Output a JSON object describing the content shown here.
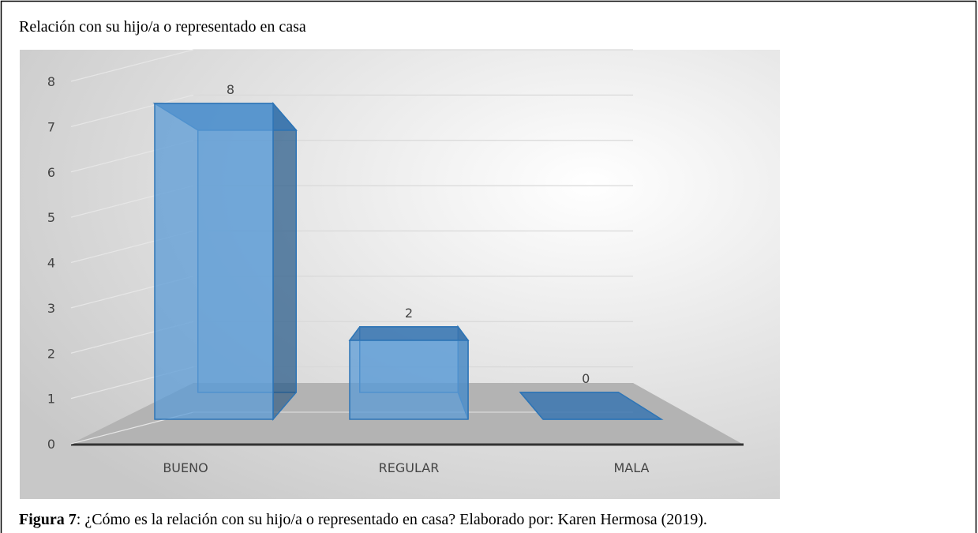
{
  "chart_data": {
    "type": "bar",
    "title": "Relación con su hijo/a o representado en casa",
    "categories": [
      "BUENO",
      "REGULAR",
      "MALA"
    ],
    "values": [
      8,
      2,
      0
    ],
    "color": "#5b9bd5",
    "ylim": [
      0,
      8
    ],
    "yticks": [
      0,
      1,
      2,
      3,
      4,
      5,
      6,
      7,
      8
    ],
    "grid": true,
    "caption": {
      "label": "Figura 7",
      "text": ": ¿Cómo es la relación con su hijo/a o representado en casa? Elaborado por: Karen Hermosa (2019)."
    }
  }
}
